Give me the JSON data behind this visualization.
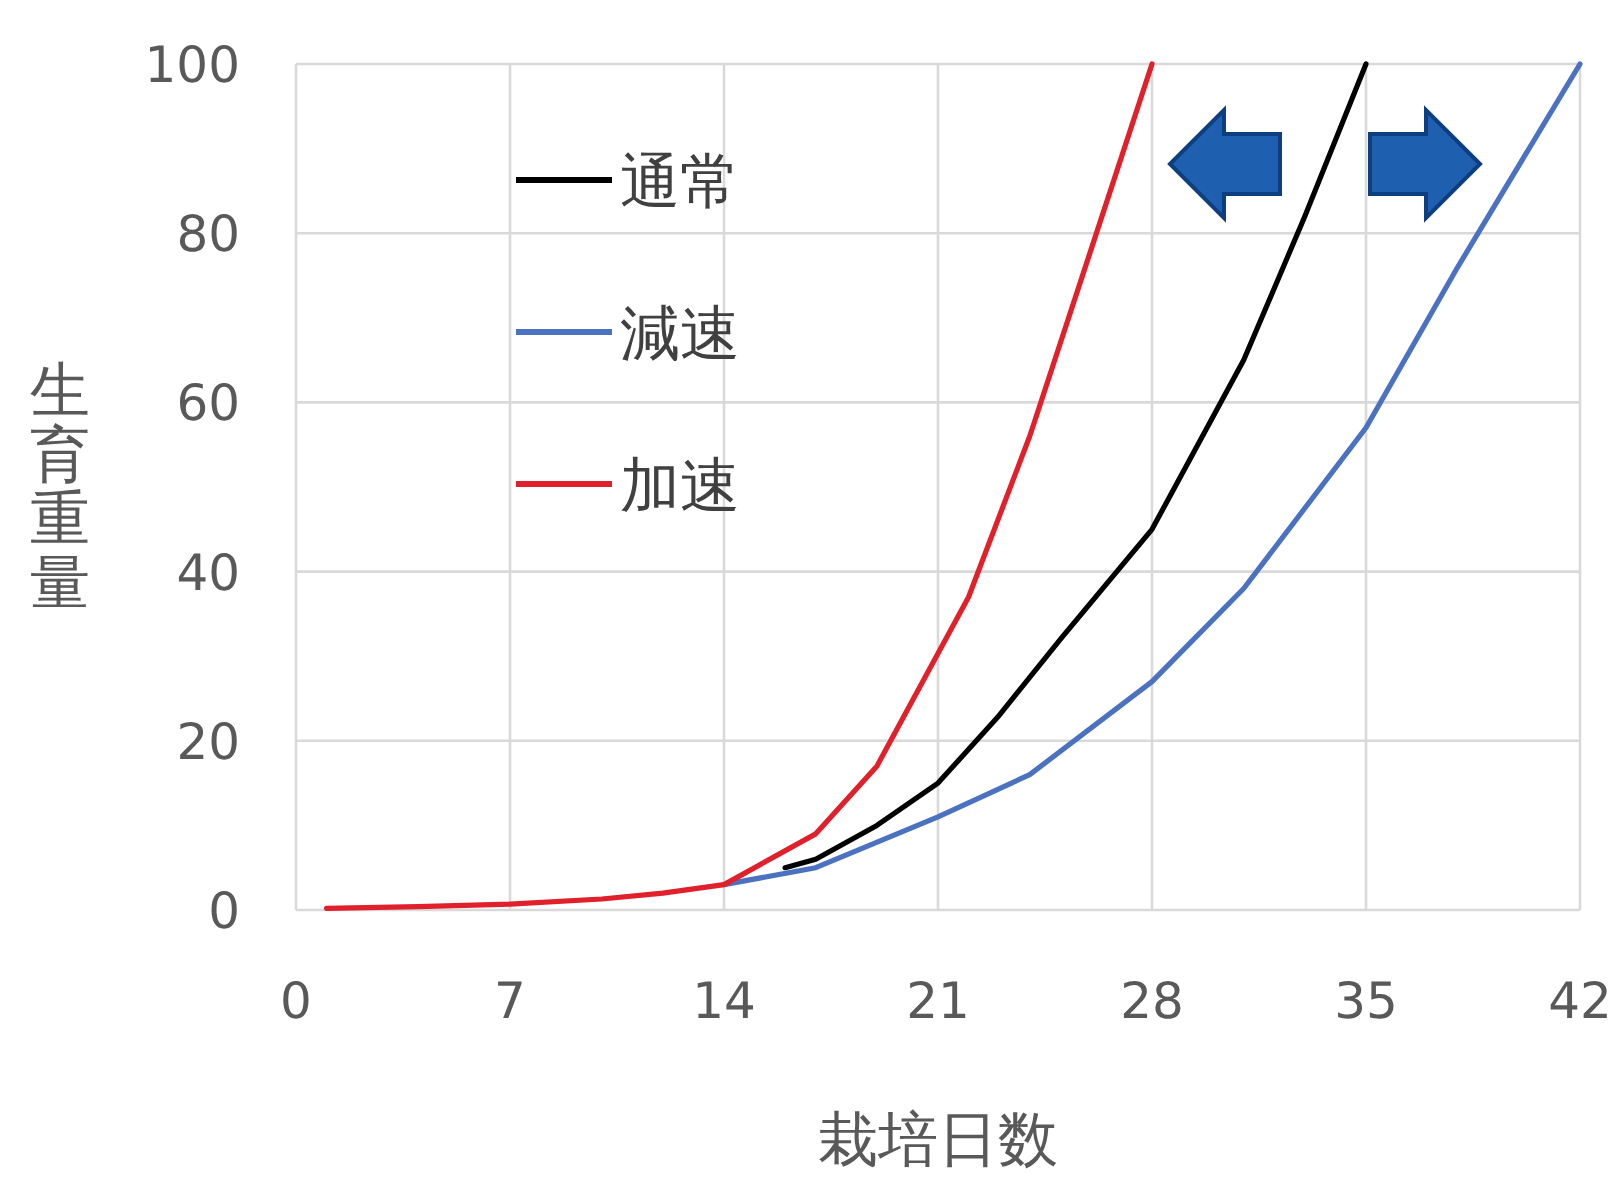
{
  "chart_data": {
    "type": "line",
    "xlabel": "栽培日数",
    "ylabel": "生育重量",
    "xlim": [
      0,
      42
    ],
    "ylim": [
      0,
      100
    ],
    "xticks": [
      0,
      7,
      14,
      21,
      28,
      35,
      42
    ],
    "yticks": [
      0,
      20,
      40,
      60,
      80,
      100
    ],
    "grid": true,
    "legend": "top left",
    "marker": "none",
    "line_style": "solid",
    "series": [
      {
        "name": "通常",
        "color": "#000000",
        "x": [
          16,
          17,
          19,
          21,
          23,
          25,
          28,
          31,
          33,
          35
        ],
        "values": [
          5,
          6,
          10,
          15,
          23,
          32,
          45,
          65,
          82,
          100
        ]
      },
      {
        "name": "減速",
        "color": "#4a72c0",
        "x": [
          14,
          17,
          21,
          24,
          28,
          31,
          35,
          38,
          42
        ],
        "values": [
          3,
          5,
          11,
          16,
          27,
          38,
          57,
          76,
          100
        ]
      },
      {
        "name": "加速",
        "color": "#e0202a",
        "x": [
          1,
          4,
          7,
          10,
          12,
          14,
          17,
          19,
          22,
          24,
          26,
          28
        ],
        "values": [
          0.2,
          0.4,
          0.7,
          1.3,
          2,
          3,
          9,
          17,
          37,
          56,
          78,
          100
        ]
      }
    ]
  }
}
